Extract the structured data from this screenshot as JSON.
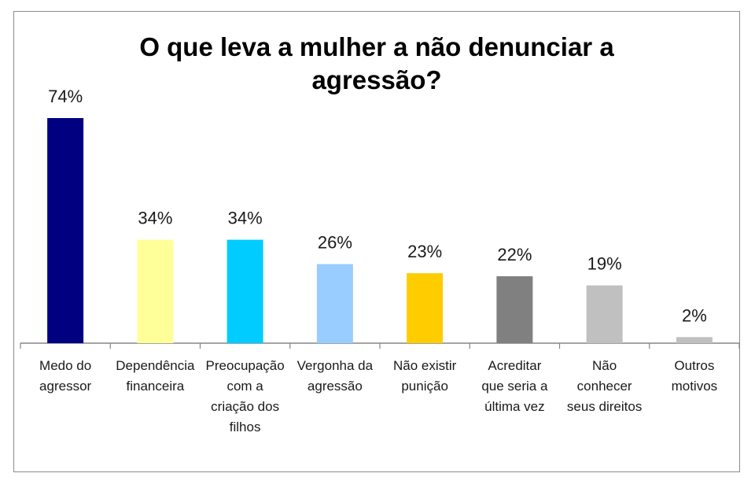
{
  "chart_data": {
    "type": "bar",
    "title": "O que leva a mulher a não denunciar a\nagressão?",
    "xlabel": "",
    "ylabel": "",
    "ylim": [
      0,
      74
    ],
    "grid": false,
    "legend": "none",
    "value_suffix": "%",
    "categories": [
      "Medo do agressor",
      "Dependência financeira",
      "Preocupação com a criação dos filhos",
      "Vergonha da agressão",
      "Não existir punição",
      "Acreditar que seria a última vez",
      "Não conhecer seus direitos",
      "Outros motivos"
    ],
    "category_lines": [
      [
        "Medo do",
        "agressor"
      ],
      [
        "Dependência",
        "financeira"
      ],
      [
        "Preocupação",
        "com a",
        "criação dos",
        "filhos"
      ],
      [
        "Vergonha da",
        "agressão"
      ],
      [
        "Não existir",
        "punição"
      ],
      [
        "Acreditar",
        "que seria a",
        "última vez"
      ],
      [
        "Não",
        "conhecer",
        "seus direitos"
      ],
      [
        "Outros",
        "motivos"
      ]
    ],
    "values": [
      74,
      34,
      34,
      26,
      23,
      22,
      19,
      2
    ],
    "data_labels": [
      "74%",
      "34%",
      "34%",
      "26%",
      "23%",
      "22%",
      "19%",
      "2%"
    ],
    "bar_colors": [
      "#000080",
      "#FFFF99",
      "#00CCFF",
      "#99CCFF",
      "#FFCC00",
      "#808080",
      "#C0C0C0",
      "#C0C0C0"
    ],
    "axis_color": "#868686"
  }
}
